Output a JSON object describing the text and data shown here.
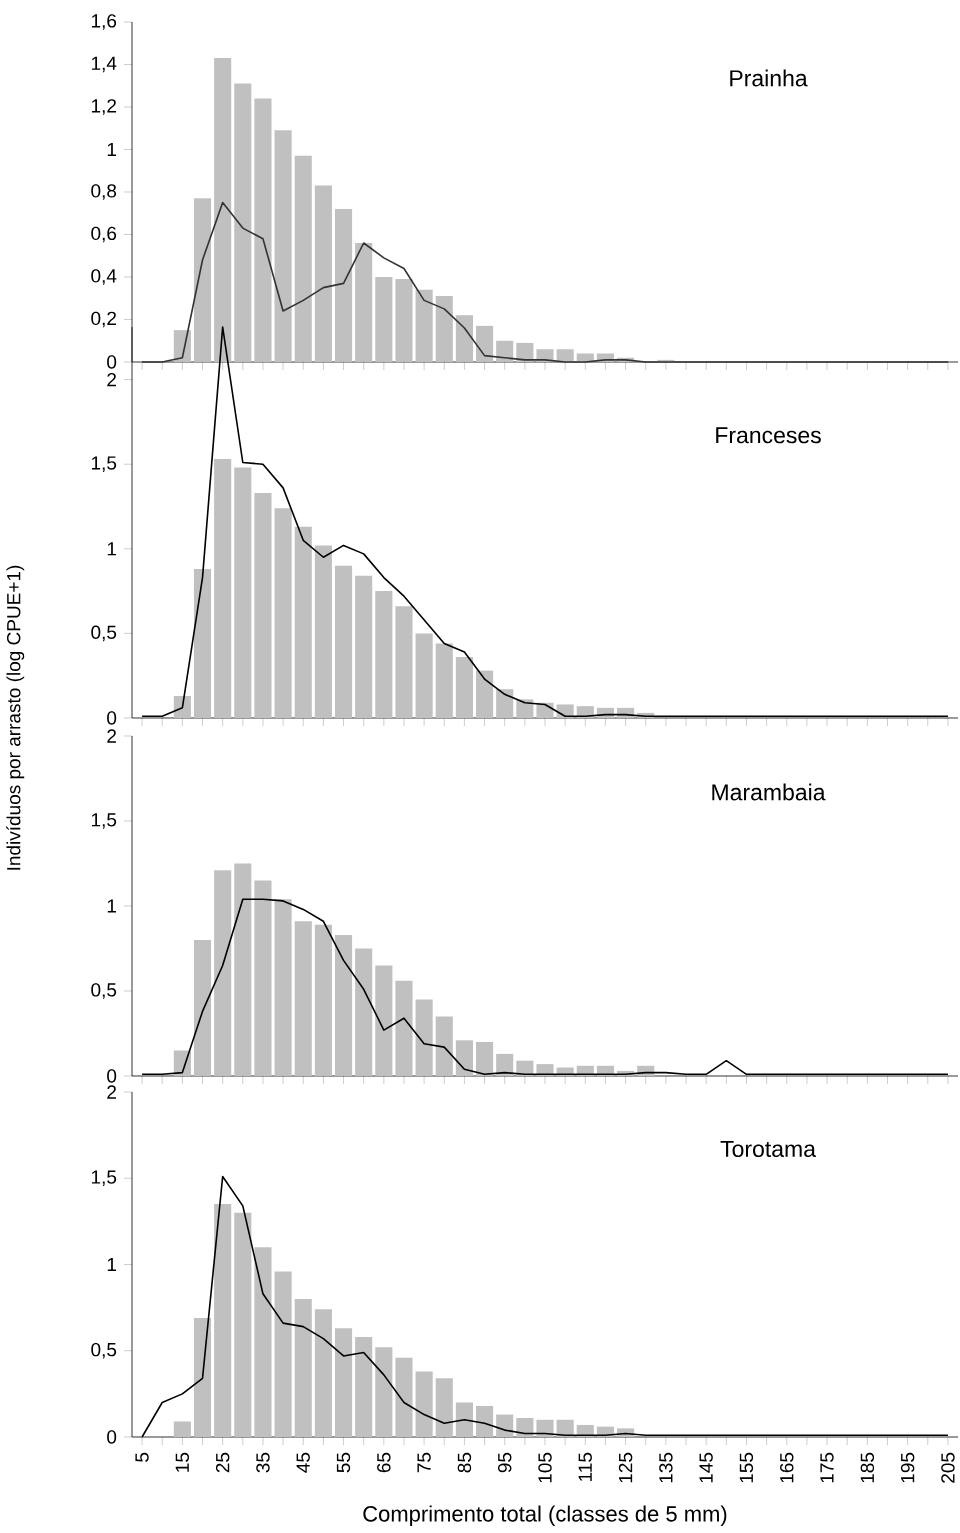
{
  "chart_data": [
    {
      "type": "bar",
      "title": "Prainha",
      "tick_labels": "y",
      "categories": [
        "5",
        null,
        "15",
        null,
        "25",
        null,
        "35",
        null,
        "45",
        null,
        "55",
        null,
        "65",
        null,
        "75",
        null,
        "85",
        null,
        "95",
        null,
        "105",
        null,
        "115",
        null,
        "125",
        null,
        "135",
        null,
        "145",
        null,
        "155",
        null,
        "165",
        null,
        "175",
        null,
        "185",
        null,
        "195",
        null,
        "205"
      ],
      "ylim": [
        0,
        1.6
      ],
      "yticks": [
        0,
        {
          "value": 0.2,
          "label": "0,2"
        },
        {
          "value": 0.4,
          "label": "0,4"
        },
        {
          "value": 0.6,
          "label": "0,6"
        },
        {
          "value": 0.8,
          "label": "0,8"
        },
        1,
        {
          "value": 1.2,
          "label": "1,2"
        },
        {
          "value": 1.4,
          "label": "1,4"
        },
        {
          "value": 1.6,
          "label": "1,6"
        }
      ],
      "series": [
        {
          "color": "#c0c0c0",
          "values": [
            0,
            0,
            0.15,
            0.77,
            1.43,
            1.31,
            1.24,
            1.09,
            0.97,
            0.83,
            0.72,
            0.56,
            0.4,
            0.39,
            0.34,
            0.31,
            0.22,
            0.17,
            0.1,
            0.09,
            0.06,
            0.06,
            0.04,
            0.04,
            0.02,
            0,
            0.01,
            0,
            0,
            0,
            0,
            0,
            0,
            0,
            0,
            0,
            0,
            0,
            0,
            0,
            0
          ]
        },
        {
          "type": "line",
          "color": "#333333",
          "values": [
            0,
            0,
            0.02,
            0.48,
            0.75,
            0.63,
            0.58,
            0.24,
            0.29,
            0.35,
            0.37,
            0.56,
            0.49,
            0.44,
            0.29,
            0.25,
            0.16,
            0.03,
            0.02,
            0.01,
            0.01,
            0,
            0,
            0.01,
            0.01,
            0,
            0,
            0,
            0,
            0,
            0,
            0,
            0,
            0,
            0,
            0,
            0,
            0,
            0,
            0,
            0
          ]
        }
      ]
    },
    {
      "type": "bar",
      "title": "Franceses",
      "ylabel": "Indivíduos por arrasto (log CPUE+1)",
      "tick_labels": "y",
      "categories": [
        "5",
        null,
        "15",
        null,
        "25",
        null,
        "35",
        null,
        "45",
        null,
        "55",
        null,
        "65",
        null,
        "75",
        null,
        "85",
        null,
        "95",
        null,
        "105",
        null,
        "115",
        null,
        "125",
        null,
        "135",
        null,
        "145",
        null,
        "155",
        null,
        "165",
        null,
        "175",
        null,
        "185",
        null,
        "195",
        null,
        "205"
      ],
      "ylim": [
        0,
        2.31
      ],
      "yticks": [
        0,
        {
          "value": 0.5,
          "label": "0,5"
        },
        1,
        {
          "value": 1.5,
          "label": "1,5"
        },
        2
      ],
      "series": [
        {
          "color": "#c0c0c0",
          "values": [
            0,
            0,
            0.13,
            0.88,
            1.53,
            1.48,
            1.33,
            1.24,
            1.13,
            1.02,
            0.9,
            0.84,
            0.75,
            0.66,
            0.5,
            0.44,
            0.36,
            0.28,
            0.17,
            0.11,
            0.09,
            0.08,
            0.07,
            0.06,
            0.06,
            0.03,
            0,
            0,
            0,
            0,
            0,
            0,
            0,
            0,
            0,
            0,
            0,
            0,
            0,
            0,
            0
          ]
        },
        {
          "type": "line",
          "color": "#000000",
          "values": [
            0.01,
            0.01,
            0.06,
            0.83,
            2.31,
            1.51,
            1.5,
            1.36,
            1.05,
            0.95,
            1.02,
            0.97,
            0.83,
            0.72,
            0.58,
            0.44,
            0.39,
            0.23,
            0.14,
            0.09,
            0.08,
            0.01,
            0.01,
            0.02,
            0.02,
            0.01,
            0.01,
            0.01,
            0.01,
            0.01,
            0.01,
            0.01,
            0.01,
            0.01,
            0.01,
            0.01,
            0.01,
            0.01,
            0.01,
            0.01,
            0.01
          ]
        }
      ]
    },
    {
      "type": "bar",
      "title": "Marambaia",
      "tick_labels": "y",
      "categories": [
        "5",
        null,
        "15",
        null,
        "25",
        null,
        "35",
        null,
        "45",
        null,
        "55",
        null,
        "65",
        null,
        "75",
        null,
        "85",
        null,
        "95",
        null,
        "105",
        null,
        "115",
        null,
        "125",
        null,
        "135",
        null,
        "145",
        null,
        "155",
        null,
        "165",
        null,
        "175",
        null,
        "185",
        null,
        "195",
        null,
        "205"
      ],
      "ylim": [
        0,
        2
      ],
      "yticks": [
        0,
        {
          "value": 0.5,
          "label": "0,5"
        },
        1,
        {
          "value": 1.5,
          "label": "1,5"
        },
        2
      ],
      "series": [
        {
          "color": "#c0c0c0",
          "values": [
            0,
            0,
            0.15,
            0.8,
            1.21,
            1.25,
            1.15,
            1.04,
            0.91,
            0.89,
            0.83,
            0.75,
            0.65,
            0.56,
            0.45,
            0.35,
            0.21,
            0.2,
            0.13,
            0.09,
            0.07,
            0.05,
            0.06,
            0.06,
            0.03,
            0.06,
            0,
            0,
            0,
            0,
            0,
            0,
            0,
            0,
            0,
            0,
            0,
            0,
            0,
            0,
            0
          ]
        },
        {
          "type": "line",
          "color": "#000000",
          "values": [
            0.01,
            0.01,
            0.02,
            0.38,
            0.65,
            1.04,
            1.04,
            1.03,
            0.98,
            0.91,
            0.68,
            0.51,
            0.27,
            0.34,
            0.19,
            0.17,
            0.04,
            0.01,
            0.02,
            0.01,
            0.01,
            0.01,
            0.01,
            0.01,
            0.01,
            0.02,
            0.02,
            0.01,
            0.01,
            0.09,
            0.01,
            0.01,
            0.01,
            0.01,
            0.01,
            0.01,
            0.01,
            0.01,
            0.01,
            0.01,
            0.01
          ]
        }
      ]
    },
    {
      "type": "bar",
      "title": "Torotama",
      "xlabel": "Comprimento total (classes de 5 mm)",
      "categories": [
        "5",
        null,
        "15",
        null,
        "25",
        null,
        "35",
        null,
        "45",
        null,
        "55",
        null,
        "65",
        null,
        "75",
        null,
        "85",
        null,
        "95",
        null,
        "105",
        null,
        "115",
        null,
        "125",
        null,
        "135",
        null,
        "145",
        null,
        "155",
        null,
        "165",
        null,
        "175",
        null,
        "185",
        null,
        "195",
        null,
        "205"
      ],
      "ylim": [
        0,
        2
      ],
      "yticks": [
        0,
        {
          "value": 0.5,
          "label": "0,5"
        },
        1,
        {
          "value": 1.5,
          "label": "1,5"
        },
        2
      ],
      "series": [
        {
          "color": "#c0c0c0",
          "values": [
            0,
            0,
            0.09,
            0.69,
            1.35,
            1.3,
            1.1,
            0.96,
            0.8,
            0.74,
            0.63,
            0.58,
            0.52,
            0.46,
            0.38,
            0.34,
            0.2,
            0.18,
            0.13,
            0.11,
            0.1,
            0.1,
            0.07,
            0.06,
            0.05,
            0,
            0,
            0,
            0,
            0,
            0,
            0,
            0,
            0,
            0,
            0,
            0,
            0,
            0,
            0,
            0
          ]
        },
        {
          "type": "line",
          "color": "#000000",
          "values": [
            0,
            0.2,
            0.25,
            0.34,
            1.51,
            1.34,
            0.83,
            0.66,
            0.64,
            0.57,
            0.47,
            0.49,
            0.36,
            0.2,
            0.13,
            0.08,
            0.1,
            0.08,
            0.04,
            0.02,
            0.02,
            0.01,
            0.01,
            0.01,
            0.02,
            0.01,
            0.01,
            0.01,
            0.01,
            0.01,
            0.01,
            0.01,
            0.01,
            0.01,
            0.01,
            0.01,
            0.01,
            0.01,
            0.01,
            0.01,
            0.01
          ]
        }
      ]
    }
  ]
}
